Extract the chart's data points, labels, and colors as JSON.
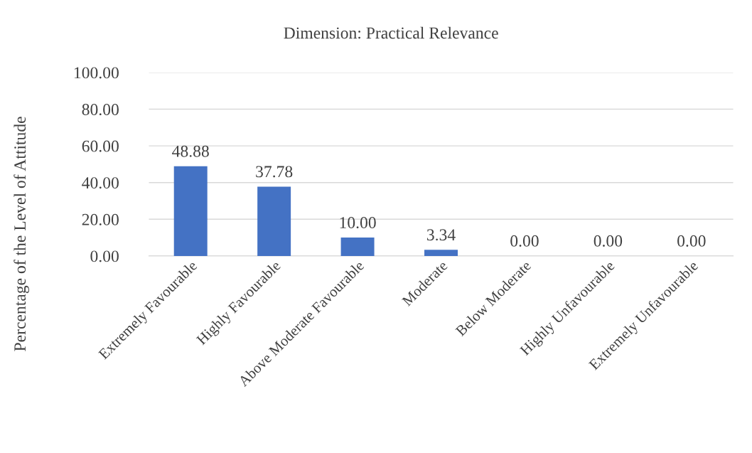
{
  "chart_data": {
    "type": "bar",
    "title": "Dimension: Practical Relevance",
    "ylabel": "Percentage of the Level of Attitude",
    "categories": [
      "Extremely Favourable",
      "Highly Favourable",
      "Above Moderate Favourable",
      "Moderate",
      "Below Moderate",
      "Highly Unfavourable",
      "Extremely Unfavourable"
    ],
    "values": [
      48.88,
      37.78,
      10.0,
      3.34,
      0.0,
      0.0,
      0.0
    ],
    "value_labels": [
      "48.88",
      "37.78",
      "10.00",
      "3.34",
      "0.00",
      "0.00",
      "0.00"
    ],
    "color": "#4472c4",
    "ylim": [
      0,
      100
    ],
    "yticks": [
      {
        "value": 0,
        "label": "0.00"
      },
      {
        "value": 20,
        "label": "20.00"
      },
      {
        "value": 40,
        "label": "40.00"
      },
      {
        "value": 60,
        "label": "60.00"
      },
      {
        "value": 80,
        "label": "80.00"
      },
      {
        "value": 100,
        "label": "100.00"
      }
    ],
    "grid": "y",
    "legend": false
  }
}
